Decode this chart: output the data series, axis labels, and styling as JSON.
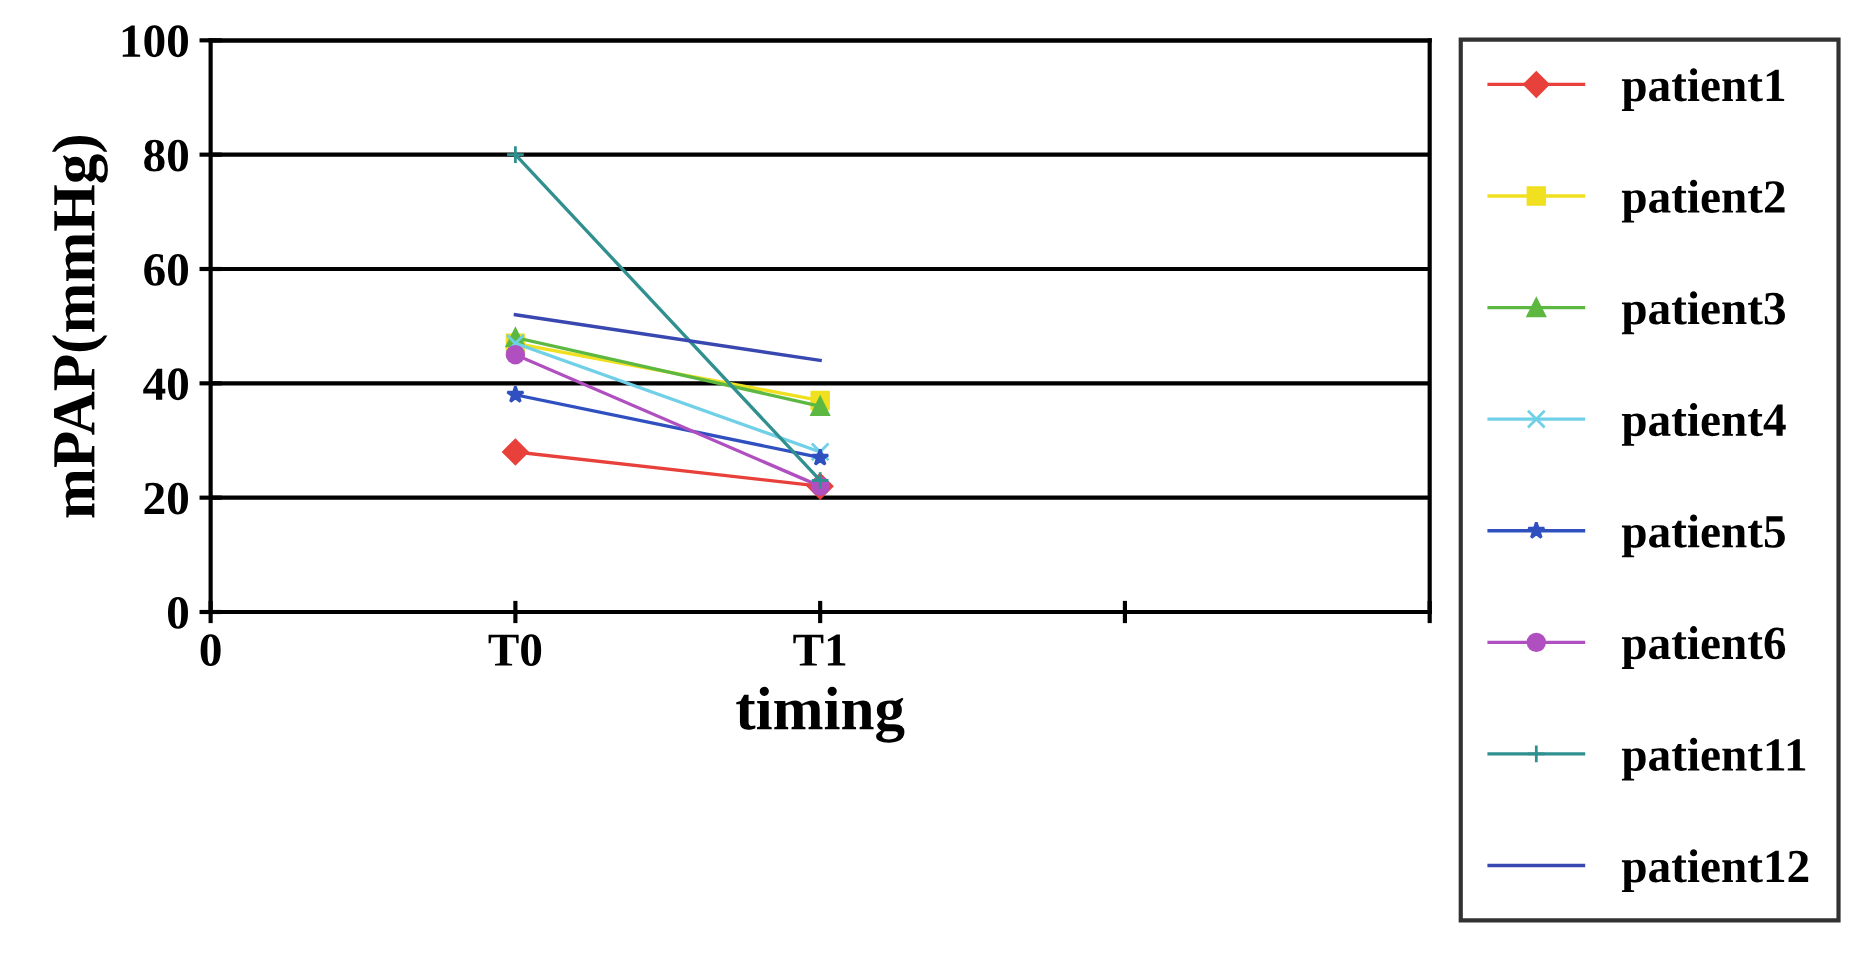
{
  "chart_data": {
    "type": "line",
    "xlabel": "timing",
    "ylabel": "mPAP(mmHg)",
    "categories": [
      "0",
      "T0",
      "T1",
      null,
      null
    ],
    "ylim": [
      0,
      100
    ],
    "yticks": [
      0,
      20,
      40,
      60,
      80,
      100
    ],
    "grid": "y",
    "legend": "right",
    "series": [
      {
        "name": "patient1",
        "color": "#e8403a",
        "marker": "diamond",
        "values": [
          null,
          28,
          22,
          null,
          null
        ]
      },
      {
        "name": "patient2",
        "color": "#f0e020",
        "marker": "square",
        "values": [
          null,
          47,
          37,
          null,
          null
        ]
      },
      {
        "name": "patient3",
        "color": "#5cb840",
        "marker": "triangle",
        "values": [
          null,
          48,
          36,
          null,
          null
        ]
      },
      {
        "name": "patient4",
        "color": "#70d0e8",
        "marker": "cross",
        "values": [
          null,
          47,
          28,
          null,
          null
        ]
      },
      {
        "name": "patient5",
        "color": "#3050c0",
        "marker": "star",
        "values": [
          null,
          38,
          27,
          null,
          null
        ]
      },
      {
        "name": "patient6",
        "color": "#b050c0",
        "marker": "circle",
        "values": [
          null,
          45,
          22,
          null,
          null
        ]
      },
      {
        "name": "patient11",
        "color": "#309090",
        "marker": "plus",
        "values": [
          null,
          80,
          23,
          null,
          null
        ]
      },
      {
        "name": "patient12",
        "color": "#3848b0",
        "marker": "none",
        "values": [
          null,
          52,
          44,
          null,
          null
        ]
      }
    ]
  }
}
